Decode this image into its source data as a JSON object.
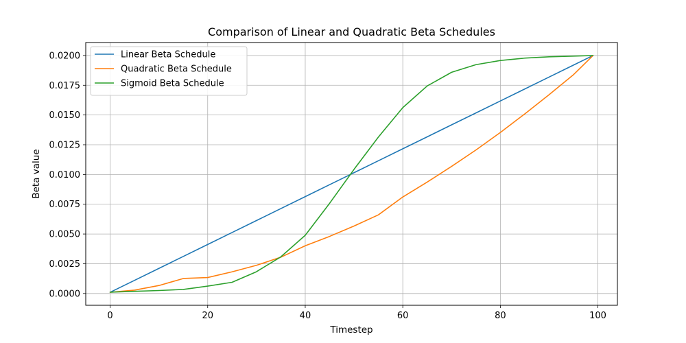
{
  "chart_data": {
    "type": "line",
    "title": "Comparison of Linear and Quadratic Beta Schedules",
    "xlabel": "Timestep",
    "ylabel": "Beta value",
    "xlim": [
      -5,
      104
    ],
    "ylim": [
      -0.00099,
      0.02109
    ],
    "xticks": [
      0,
      20,
      40,
      60,
      80,
      100
    ],
    "xtick_labels": [
      "0",
      "20",
      "40",
      "60",
      "80",
      "100"
    ],
    "yticks": [
      0,
      0.0025,
      0.005,
      0.0075,
      0.01,
      0.0125,
      0.015,
      0.0175,
      0.02
    ],
    "ytick_labels": [
      "0.0000",
      "0.0025",
      "0.0050",
      "0.0075",
      "0.0100",
      "0.0125",
      "0.0150",
      "0.0175",
      "0.0200"
    ],
    "grid": true,
    "legend_position": "top-left",
    "x": [
      0,
      5,
      10,
      15,
      20,
      25,
      30,
      35,
      40,
      45,
      50,
      55,
      60,
      65,
      70,
      75,
      80,
      85,
      90,
      95,
      99
    ],
    "series": [
      {
        "name": "Linear Beta Schedule",
        "color": "#1f77b4",
        "values": [
          0.0001,
          0.001105,
          0.00211,
          0.003115,
          0.00412,
          0.005125,
          0.00613,
          0.007135,
          0.00814,
          0.009145,
          0.01015,
          0.011155,
          0.01216,
          0.013165,
          0.01417,
          0.015175,
          0.01618,
          0.017185,
          0.01819,
          0.019195,
          0.02
        ]
      },
      {
        "name": "Quadratic Beta Schedule",
        "color": "#ff7f0e",
        "values": [
          0.0001,
          0.00028,
          0.00067,
          0.00126,
          0.00134,
          0.00182,
          0.00237,
          0.00305,
          0.00401,
          0.0048,
          0.00567,
          0.00661,
          0.00811,
          0.00936,
          0.01068,
          0.01206,
          0.01353,
          0.01509,
          0.01671,
          0.01839,
          0.02
        ]
      },
      {
        "name": "Sigmoid Beta Schedule",
        "color": "#2ca02c",
        "values": [
          0.00011,
          0.00018,
          0.00025,
          0.00034,
          0.00062,
          0.00094,
          0.00183,
          0.00308,
          0.00489,
          0.00758,
          0.01043,
          0.01315,
          0.01562,
          0.01744,
          0.01859,
          0.01923,
          0.01958,
          0.01978,
          0.01989,
          0.01995,
          0.02
        ]
      }
    ]
  }
}
